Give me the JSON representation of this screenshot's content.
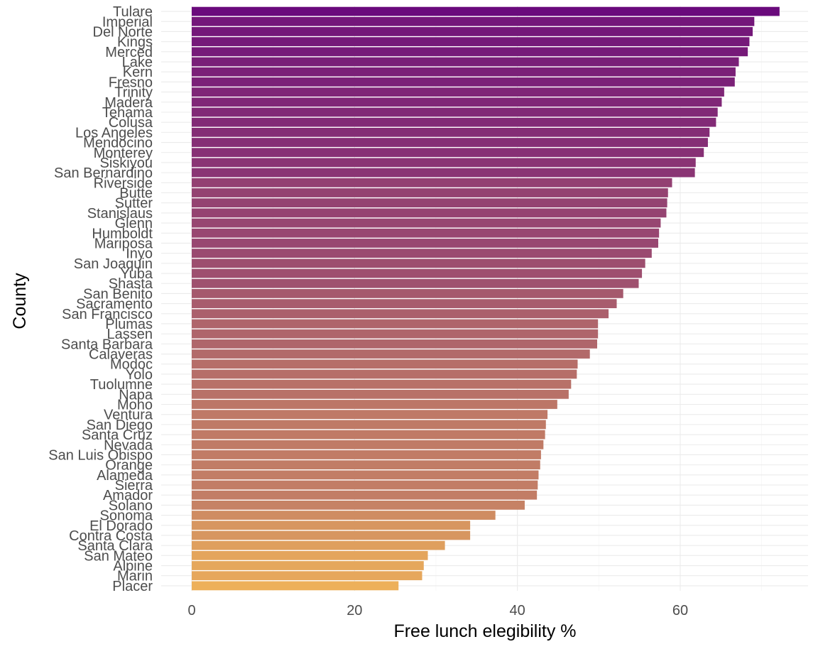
{
  "chart_data": {
    "type": "bar",
    "orientation": "horizontal",
    "xlabel": "Free lunch elegibility %",
    "ylabel": "County",
    "xlim": [
      0,
      75.5
    ],
    "x_ticks": [
      0,
      20,
      40,
      60
    ],
    "grid": true,
    "gradient": {
      "high": "#6a0a7c",
      "mid": "#b26a6a",
      "low": "#edb05a"
    },
    "categories": [
      "Tulare",
      "Imperial",
      "Del Norte",
      "Kings",
      "Merced",
      "Lake",
      "Kern",
      "Fresno",
      "Trinity",
      "Madera",
      "Tehama",
      "Colusa",
      "Los Angeles",
      "Mendocino",
      "Monterey",
      "Siskiyou",
      "San Bernardino",
      "Riverside",
      "Butte",
      "Sutter",
      "Stanislaus",
      "Glenn",
      "Humboldt",
      "Mariposa",
      "Inyo",
      "San Joaquin",
      "Yuba",
      "Shasta",
      "San Benito",
      "Sacramento",
      "San Francisco",
      "Plumas",
      "Lassen",
      "Santa Barbara",
      "Calaveras",
      "Modoc",
      "Yolo",
      "Tuolumne",
      "Napa",
      "Mono",
      "Ventura",
      "San Diego",
      "Santa Cruz",
      "Nevada",
      "San Luis Obispo",
      "Orange",
      "Alameda",
      "Sierra",
      "Amador",
      "Solano",
      "Sonoma",
      "El Dorado",
      "Contra Costa",
      "Santa Clara",
      "San Mateo",
      "Alpine",
      "Marin",
      "Placer"
    ],
    "values": [
      72.2,
      69.1,
      68.9,
      68.5,
      68.3,
      67.2,
      66.8,
      66.7,
      65.4,
      65.1,
      64.6,
      64.4,
      63.6,
      63.4,
      62.9,
      61.9,
      61.8,
      59.0,
      58.5,
      58.4,
      58.3,
      57.6,
      57.4,
      57.3,
      56.5,
      55.7,
      55.3,
      54.9,
      53.0,
      52.2,
      51.2,
      49.9,
      49.9,
      49.8,
      48.9,
      47.4,
      47.3,
      46.6,
      46.3,
      44.9,
      43.7,
      43.5,
      43.4,
      43.2,
      42.9,
      42.8,
      42.6,
      42.5,
      42.4,
      40.9,
      37.3,
      34.2,
      34.2,
      31.1,
      29.0,
      28.5,
      28.3,
      25.4
    ]
  }
}
